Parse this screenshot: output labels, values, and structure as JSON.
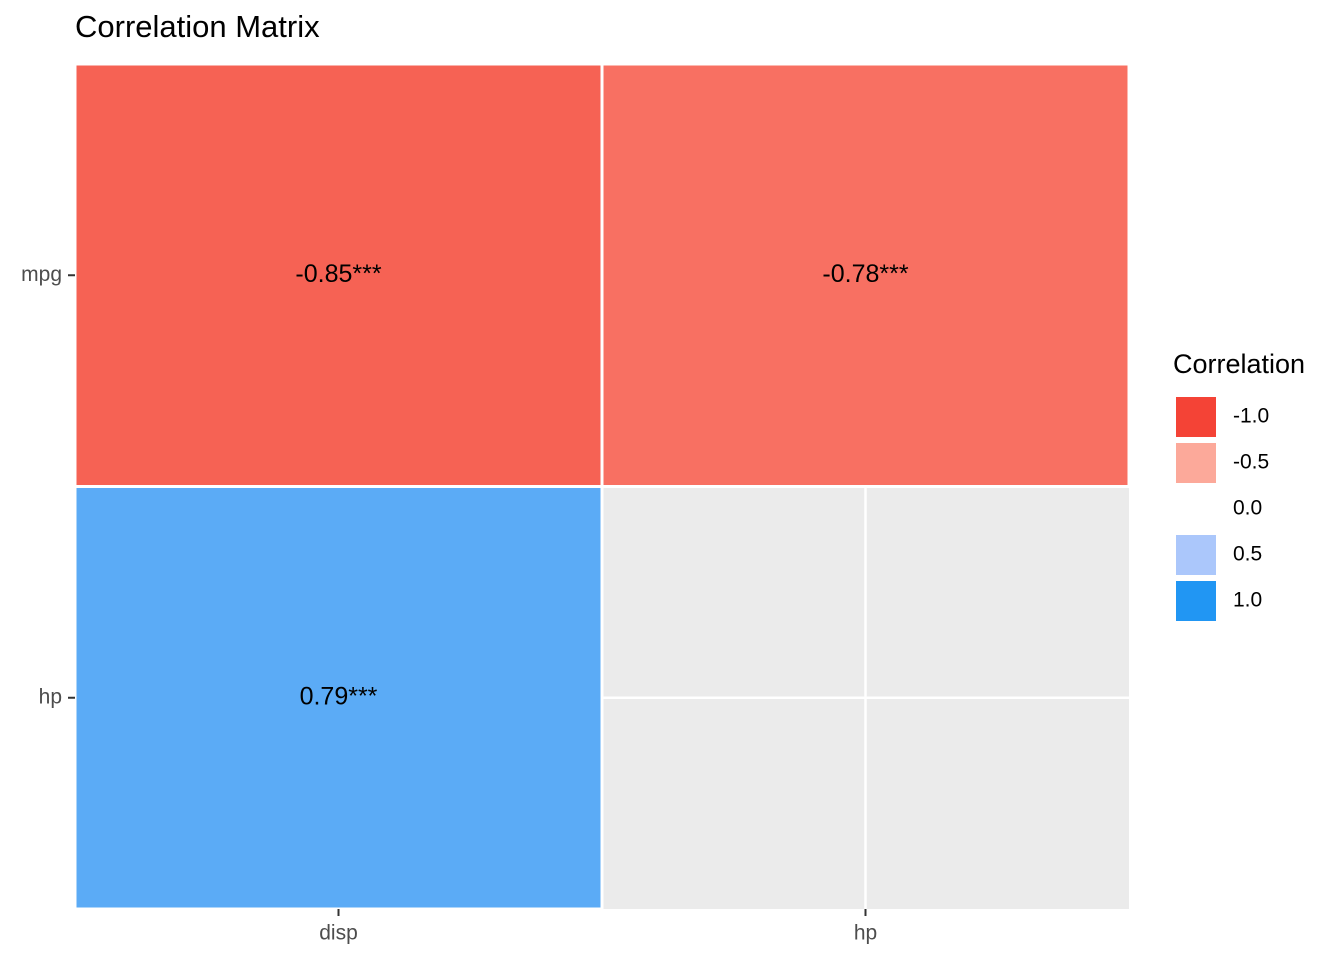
{
  "chart_data": {
    "type": "heatmap",
    "title": "Correlation Matrix",
    "x": [
      "disp",
      "hp"
    ],
    "y": [
      "mpg",
      "hp"
    ],
    "values": [
      [
        -0.85,
        -0.78
      ],
      [
        0.79,
        null
      ]
    ],
    "value_labels": [
      [
        "-0.85***",
        "-0.78***"
      ],
      [
        "0.79***",
        null
      ]
    ],
    "legend_title": "Correlation",
    "colorscale": [
      {
        "value": -1,
        "label": "-1.0",
        "color": "#f44336"
      },
      {
        "value": -0.5,
        "label": "-0.5",
        "color": "#fca99a"
      },
      {
        "value": 0,
        "label": "0.0",
        "color": "#ffffff"
      },
      {
        "value": 0.5,
        "label": "0.5",
        "color": "#abc7fb"
      },
      {
        "value": 1,
        "label": "1.0",
        "color": "#2196f3"
      }
    ],
    "grid": true
  }
}
